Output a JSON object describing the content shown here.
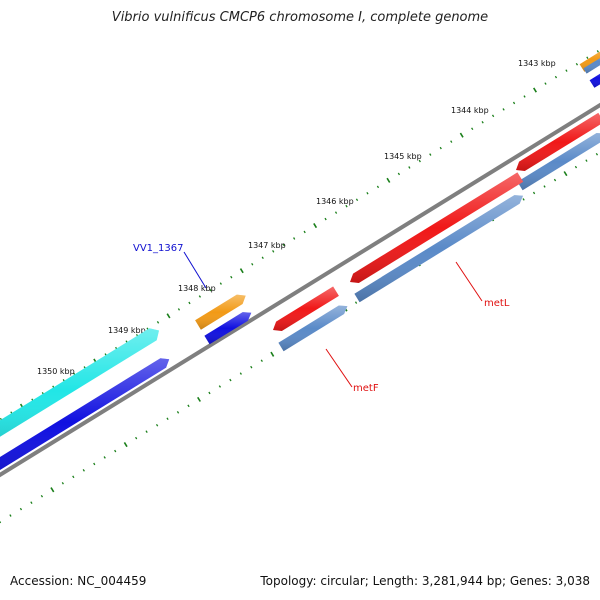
{
  "title": "Vibrio vulnificus CMCP6 chromosome I, complete genome",
  "footer": {
    "accession": "Accession: NC_004459",
    "summary": "Topology: circular; Length: 3,281,944 bp; Genes: 3,038"
  },
  "ruler_labels": [
    "1343 kbp",
    "1344 kbp",
    "1345 kbp",
    "1346 kbp",
    "1347 kbp",
    "1348 kbp",
    "1349 kbp",
    "1350 kbp"
  ],
  "gene_labels": {
    "vv1_1367": "VV1_1367",
    "metL": "metL",
    "metF": "metF"
  },
  "colors": {
    "backbone": "#7f7f7f",
    "tick": "#1a7f1a",
    "orange": "#f29a16",
    "blue": "#1010e0",
    "red": "#f01818",
    "steelblue": "#5a8ac8",
    "cyan": "#22e6e6",
    "label_blue": "#1010d0",
    "label_red": "#e01010"
  }
}
